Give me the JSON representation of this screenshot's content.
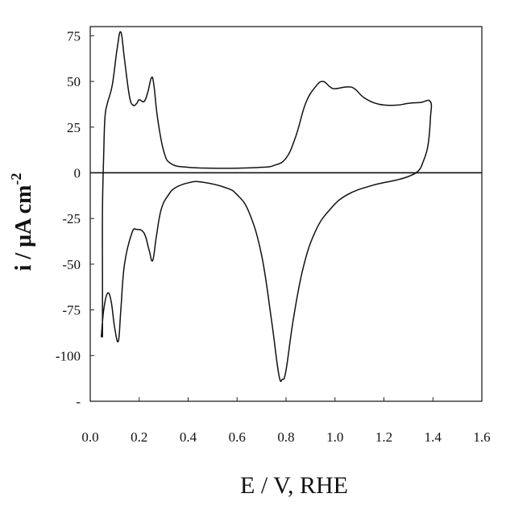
{
  "chart_data": {
    "type": "line",
    "title": "",
    "xlabel": "E  /  V, RHE",
    "ylabel": "i  /  μA cm",
    "ylabel_superscript": "-2",
    "xlim": [
      0.0,
      1.6
    ],
    "ylim": [
      -125,
      80
    ],
    "xticks": [
      0.0,
      0.2,
      0.4,
      0.6,
      0.8,
      1.0,
      1.2,
      1.4,
      1.6
    ],
    "xtick_labels": [
      "0.0",
      "0.2",
      "0.4",
      "0.6",
      "0.8",
      "1.0",
      "1.2",
      "1.4",
      "1.6"
    ],
    "yticks": [
      75,
      50,
      25,
      0,
      -25,
      -50,
      -75,
      -100,
      -125
    ],
    "ytick_labels": [
      "75",
      "50",
      "25",
      "0",
      "-25",
      "-50",
      "-75",
      "-100",
      "-"
    ],
    "grid": false,
    "zero_line": true,
    "series": [
      {
        "line_color": "#111111",
        "points": [
          [
            0.05,
            -90
          ],
          [
            0.05,
            -60
          ],
          [
            0.05,
            -20
          ],
          [
            0.055,
            10
          ],
          [
            0.06,
            30
          ],
          [
            0.07,
            38
          ],
          [
            0.09,
            48
          ],
          [
            0.11,
            68
          ],
          [
            0.125,
            77
          ],
          [
            0.14,
            62
          ],
          [
            0.16,
            42
          ],
          [
            0.175,
            37
          ],
          [
            0.19,
            38
          ],
          [
            0.2,
            40
          ],
          [
            0.22,
            39
          ],
          [
            0.235,
            44
          ],
          [
            0.25,
            52
          ],
          [
            0.26,
            48
          ],
          [
            0.275,
            30
          ],
          [
            0.3,
            12
          ],
          [
            0.33,
            5
          ],
          [
            0.4,
            3
          ],
          [
            0.5,
            2.5
          ],
          [
            0.6,
            2.5
          ],
          [
            0.7,
            3
          ],
          [
            0.75,
            4
          ],
          [
            0.8,
            8
          ],
          [
            0.84,
            20
          ],
          [
            0.88,
            38
          ],
          [
            0.92,
            47
          ],
          [
            0.95,
            50
          ],
          [
            0.98,
            47
          ],
          [
            1.0,
            46
          ],
          [
            1.05,
            47
          ],
          [
            1.08,
            46
          ],
          [
            1.12,
            41
          ],
          [
            1.18,
            37.5
          ],
          [
            1.25,
            37
          ],
          [
            1.3,
            38
          ],
          [
            1.35,
            38.5
          ],
          [
            1.39,
            39
          ],
          [
            1.39,
            30
          ],
          [
            1.38,
            15
          ],
          [
            1.36,
            6
          ],
          [
            1.34,
            1
          ],
          [
            1.3,
            -2
          ],
          [
            1.25,
            -4
          ],
          [
            1.15,
            -7
          ],
          [
            1.05,
            -12
          ],
          [
            0.98,
            -20
          ],
          [
            0.92,
            -32
          ],
          [
            0.87,
            -52
          ],
          [
            0.83,
            -80
          ],
          [
            0.8,
            -108
          ],
          [
            0.785,
            -113
          ],
          [
            0.77,
            -110
          ],
          [
            0.74,
            -80
          ],
          [
            0.7,
            -45
          ],
          [
            0.65,
            -22
          ],
          [
            0.6,
            -12
          ],
          [
            0.55,
            -8
          ],
          [
            0.45,
            -5
          ],
          [
            0.4,
            -5.5
          ],
          [
            0.35,
            -8
          ],
          [
            0.32,
            -12
          ],
          [
            0.29,
            -20
          ],
          [
            0.27,
            -35
          ],
          [
            0.255,
            -48
          ],
          [
            0.24,
            -42
          ],
          [
            0.22,
            -33
          ],
          [
            0.19,
            -31
          ],
          [
            0.17,
            -33
          ],
          [
            0.14,
            -50
          ],
          [
            0.125,
            -75
          ],
          [
            0.115,
            -92
          ],
          [
            0.1,
            -85
          ],
          [
            0.085,
            -70
          ],
          [
            0.07,
            -66
          ],
          [
            0.055,
            -75
          ],
          [
            0.045,
            -90
          ]
        ]
      }
    ]
  }
}
